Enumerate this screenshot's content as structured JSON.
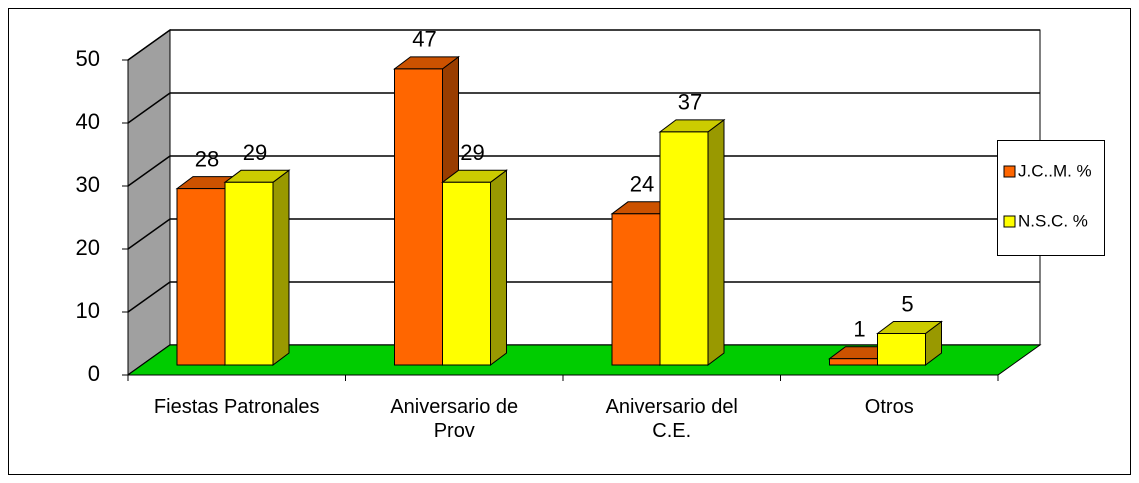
{
  "chart_data": {
    "type": "bar3d",
    "categories": [
      "Fiestas Patronales",
      "Aniversario de Prov",
      "Aniversario del C.E.",
      "Otros"
    ],
    "series": [
      {
        "name": "J.C..M. %",
        "color": "#ff6600",
        "values": [
          28,
          47,
          24,
          1
        ]
      },
      {
        "name": "N.S.C. %",
        "color": "#ffff00",
        "values": [
          29,
          29,
          37,
          5
        ]
      }
    ],
    "ylim": [
      0,
      50
    ],
    "yticks": [
      0,
      10,
      20,
      30,
      40,
      50
    ],
    "grid": true,
    "legend": "right"
  }
}
